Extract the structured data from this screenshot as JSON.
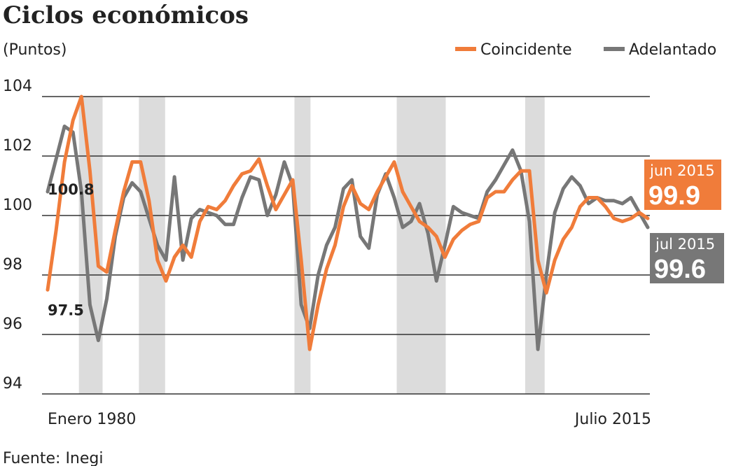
{
  "chart_data": {
    "type": "line",
    "title": "Ciclos económicos",
    "subtitle": "(Puntos)",
    "source": "Fuente: Inegi",
    "categories": [
      "Enero 1980",
      null,
      null,
      null,
      null,
      null,
      null,
      null,
      null,
      null,
      null,
      null,
      null,
      null,
      null,
      null,
      null,
      null,
      null,
      null,
      null,
      null,
      null,
      null,
      null,
      null,
      null,
      null,
      null,
      null,
      null,
      null,
      null,
      null,
      null,
      null,
      null,
      null,
      null,
      null,
      null,
      null,
      null,
      null,
      null,
      null,
      null,
      null,
      null,
      null,
      null,
      null,
      null,
      null,
      null,
      null,
      null,
      null,
      null,
      null,
      null,
      null,
      null,
      null,
      null,
      null,
      null,
      null,
      null,
      null,
      null,
      "Julio 2015"
    ],
    "series": [
      {
        "name": "Coincidente",
        "color": "#f07c3a",
        "last_label": "jun 2015",
        "values": [
          97.5,
          99.5,
          101.8,
          103.2,
          104,
          101.5,
          98.3,
          98.1,
          99.5,
          100.8,
          101.8,
          101.8,
          100.5,
          98.5,
          97.8,
          98.6,
          99.0,
          98.6,
          99.8,
          100.3,
          100.2,
          100.5,
          101.0,
          101.4,
          101.5,
          101.9,
          101.0,
          100.2,
          100.7,
          101.2,
          98.5,
          95.5,
          97.0,
          98.2,
          99.0,
          100.3,
          101.0,
          100.4,
          100.2,
          100.8,
          101.3,
          101.8,
          100.8,
          100.3,
          99.8,
          99.6,
          99.3,
          98.6,
          99.2,
          99.5,
          99.7,
          99.8,
          100.6,
          100.8,
          100.8,
          101.2,
          101.5,
          101.5,
          98.5,
          97.4,
          98.5,
          99.2,
          99.6,
          100.3,
          100.6,
          100.6,
          100.3,
          99.9,
          99.8,
          99.9,
          100.1,
          99.9
        ]
      },
      {
        "name": "Adelantado",
        "color": "#777777",
        "last_label": "jul 2015",
        "values": [
          100.8,
          101.9,
          103.0,
          102.8,
          100.8,
          97.0,
          95.8,
          97.2,
          99.3,
          100.6,
          101.1,
          100.8,
          99.9,
          99.0,
          98.5,
          101.3,
          98.5,
          99.9,
          100.2,
          100.1,
          100.0,
          99.7,
          99.7,
          100.6,
          101.3,
          101.2,
          100.0,
          100.7,
          101.8,
          101.0,
          97.0,
          96.2,
          98.0,
          99.0,
          99.6,
          100.9,
          101.2,
          99.3,
          98.9,
          100.7,
          101.4,
          100.6,
          99.6,
          99.8,
          100.4,
          99.4,
          97.8,
          99.0,
          100.3,
          100.1,
          100.0,
          99.9,
          100.8,
          101.2,
          101.7,
          102.2,
          101.5,
          99.8,
          95.5,
          98.0,
          100.1,
          100.9,
          101.3,
          101.0,
          100.4,
          100.6,
          100.5,
          100.5,
          100.4,
          100.6,
          100.1,
          99.6
        ]
      }
    ],
    "shaded": [
      [
        3.7,
        6.5
      ],
      [
        10.8,
        13.9
      ],
      [
        29.2,
        31.1
      ],
      [
        41.3,
        47.1
      ],
      [
        56.5,
        58.8
      ]
    ],
    "ylim": [
      94,
      104
    ],
    "yticks": [
      94,
      96,
      98,
      100,
      102,
      104
    ],
    "grid": true,
    "legend": "top-right"
  }
}
